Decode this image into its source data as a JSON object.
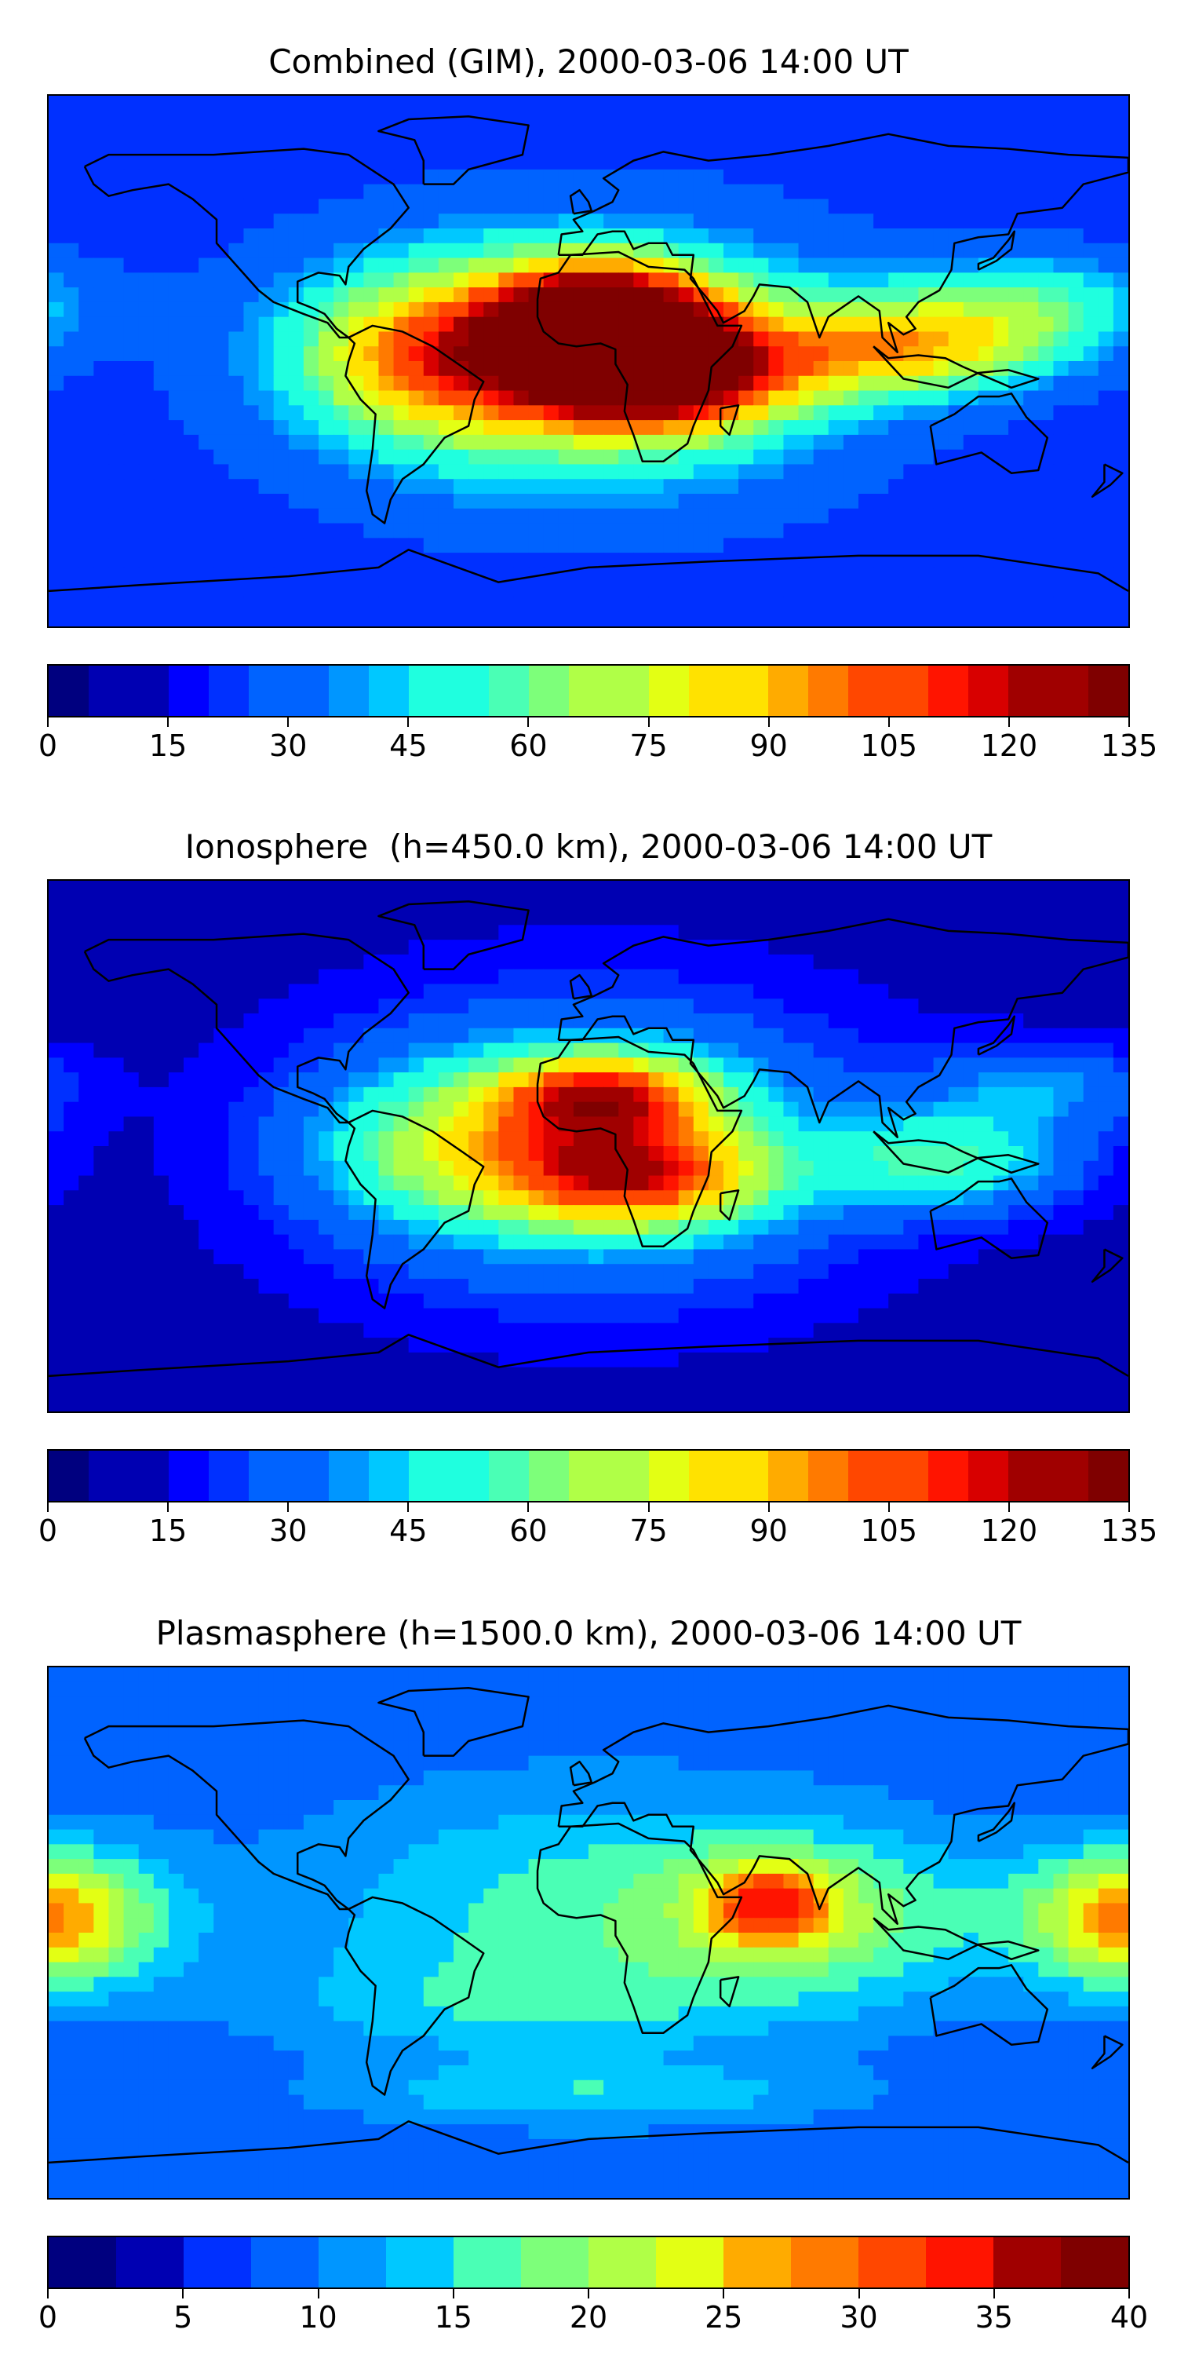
{
  "panels": [
    {
      "title": "Combined (GIM), 2000-03-06 14:00 UT",
      "colorbar_ticks": [
        "0",
        "15",
        "30",
        "45",
        "60",
        "75",
        "90",
        "105",
        "120",
        "135"
      ],
      "levels": 27,
      "vmax": 135,
      "field": [
        {
          "lon": 5,
          "lat": 15,
          "value": 110,
          "sx": 25,
          "sy": 12
        },
        {
          "lon": 20,
          "lat": -5,
          "value": 100,
          "sx": 30,
          "sy": 12
        },
        {
          "lon": -55,
          "lat": 2,
          "value": 45,
          "sx": 30,
          "sy": 18
        },
        {
          "lon": 105,
          "lat": 5,
          "value": 60,
          "sx": 35,
          "sy": 12
        },
        {
          "lon": 150,
          "lat": 20,
          "value": 30,
          "sx": 30,
          "sy": 12
        },
        {
          "lon": -5,
          "lat": 0,
          "value": 60,
          "sx": 60,
          "sy": 30
        }
      ],
      "base": 20
    },
    {
      "title": "Ionosphere  (h=450.0 km), 2000-03-06 14:00 UT",
      "colorbar_ticks": [
        "0",
        "15",
        "30",
        "45",
        "60",
        "75",
        "90",
        "105",
        "120",
        "135"
      ],
      "levels": 27,
      "vmax": 135,
      "field": [
        {
          "lon": 5,
          "lat": 17,
          "value": 70,
          "sx": 25,
          "sy": 10
        },
        {
          "lon": 15,
          "lat": -10,
          "value": 70,
          "sx": 30,
          "sy": 12
        },
        {
          "lon": -50,
          "lat": 0,
          "value": 30,
          "sx": 30,
          "sy": 18
        },
        {
          "lon": 120,
          "lat": -5,
          "value": 40,
          "sx": 30,
          "sy": 12
        },
        {
          "lon": 150,
          "lat": 20,
          "value": 25,
          "sx": 25,
          "sy": 10
        },
        {
          "lon": 0,
          "lat": 0,
          "value": 45,
          "sx": 60,
          "sy": 32
        }
      ],
      "base": 12
    },
    {
      "title": "Plasmasphere (h=1500.0 km), 2000-03-06 14:00 UT",
      "colorbar_ticks": [
        "0",
        "5",
        "10",
        "15",
        "20",
        "25",
        "30",
        "35",
        "40"
      ],
      "levels": 16,
      "vmax": 40,
      "field": [
        {
          "lon": 60,
          "lat": 10,
          "value": 15,
          "sx": 15,
          "sy": 10
        },
        {
          "lon": 80,
          "lat": 5,
          "value": 8,
          "sx": 40,
          "sy": 20
        },
        {
          "lon": -175,
          "lat": 5,
          "value": 10,
          "sx": 30,
          "sy": 18
        },
        {
          "lon": 178,
          "lat": 5,
          "value": 10,
          "sx": 20,
          "sy": 15
        },
        {
          "lon": 0,
          "lat": 8,
          "value": 8,
          "sx": 70,
          "sy": 30
        },
        {
          "lon": -30,
          "lat": -25,
          "value": 4,
          "sx": 60,
          "sy": 12
        },
        {
          "lon": 0,
          "lat": -55,
          "value": 6,
          "sx": 60,
          "sy": 8
        }
      ],
      "base": 8
    }
  ],
  "colormap": [
    "#00007f",
    "#0000b2",
    "#0000ff",
    "#0030ff",
    "#0063ff",
    "#0096ff",
    "#00c8ff",
    "#1fffdf",
    "#4affb5",
    "#7dff7a",
    "#b0ff47",
    "#e3ff14",
    "#ffe200",
    "#ffab00",
    "#ff7a00",
    "#ff4700",
    "#ff1400",
    "#d80000",
    "#a00000",
    "#7f0000"
  ]
}
